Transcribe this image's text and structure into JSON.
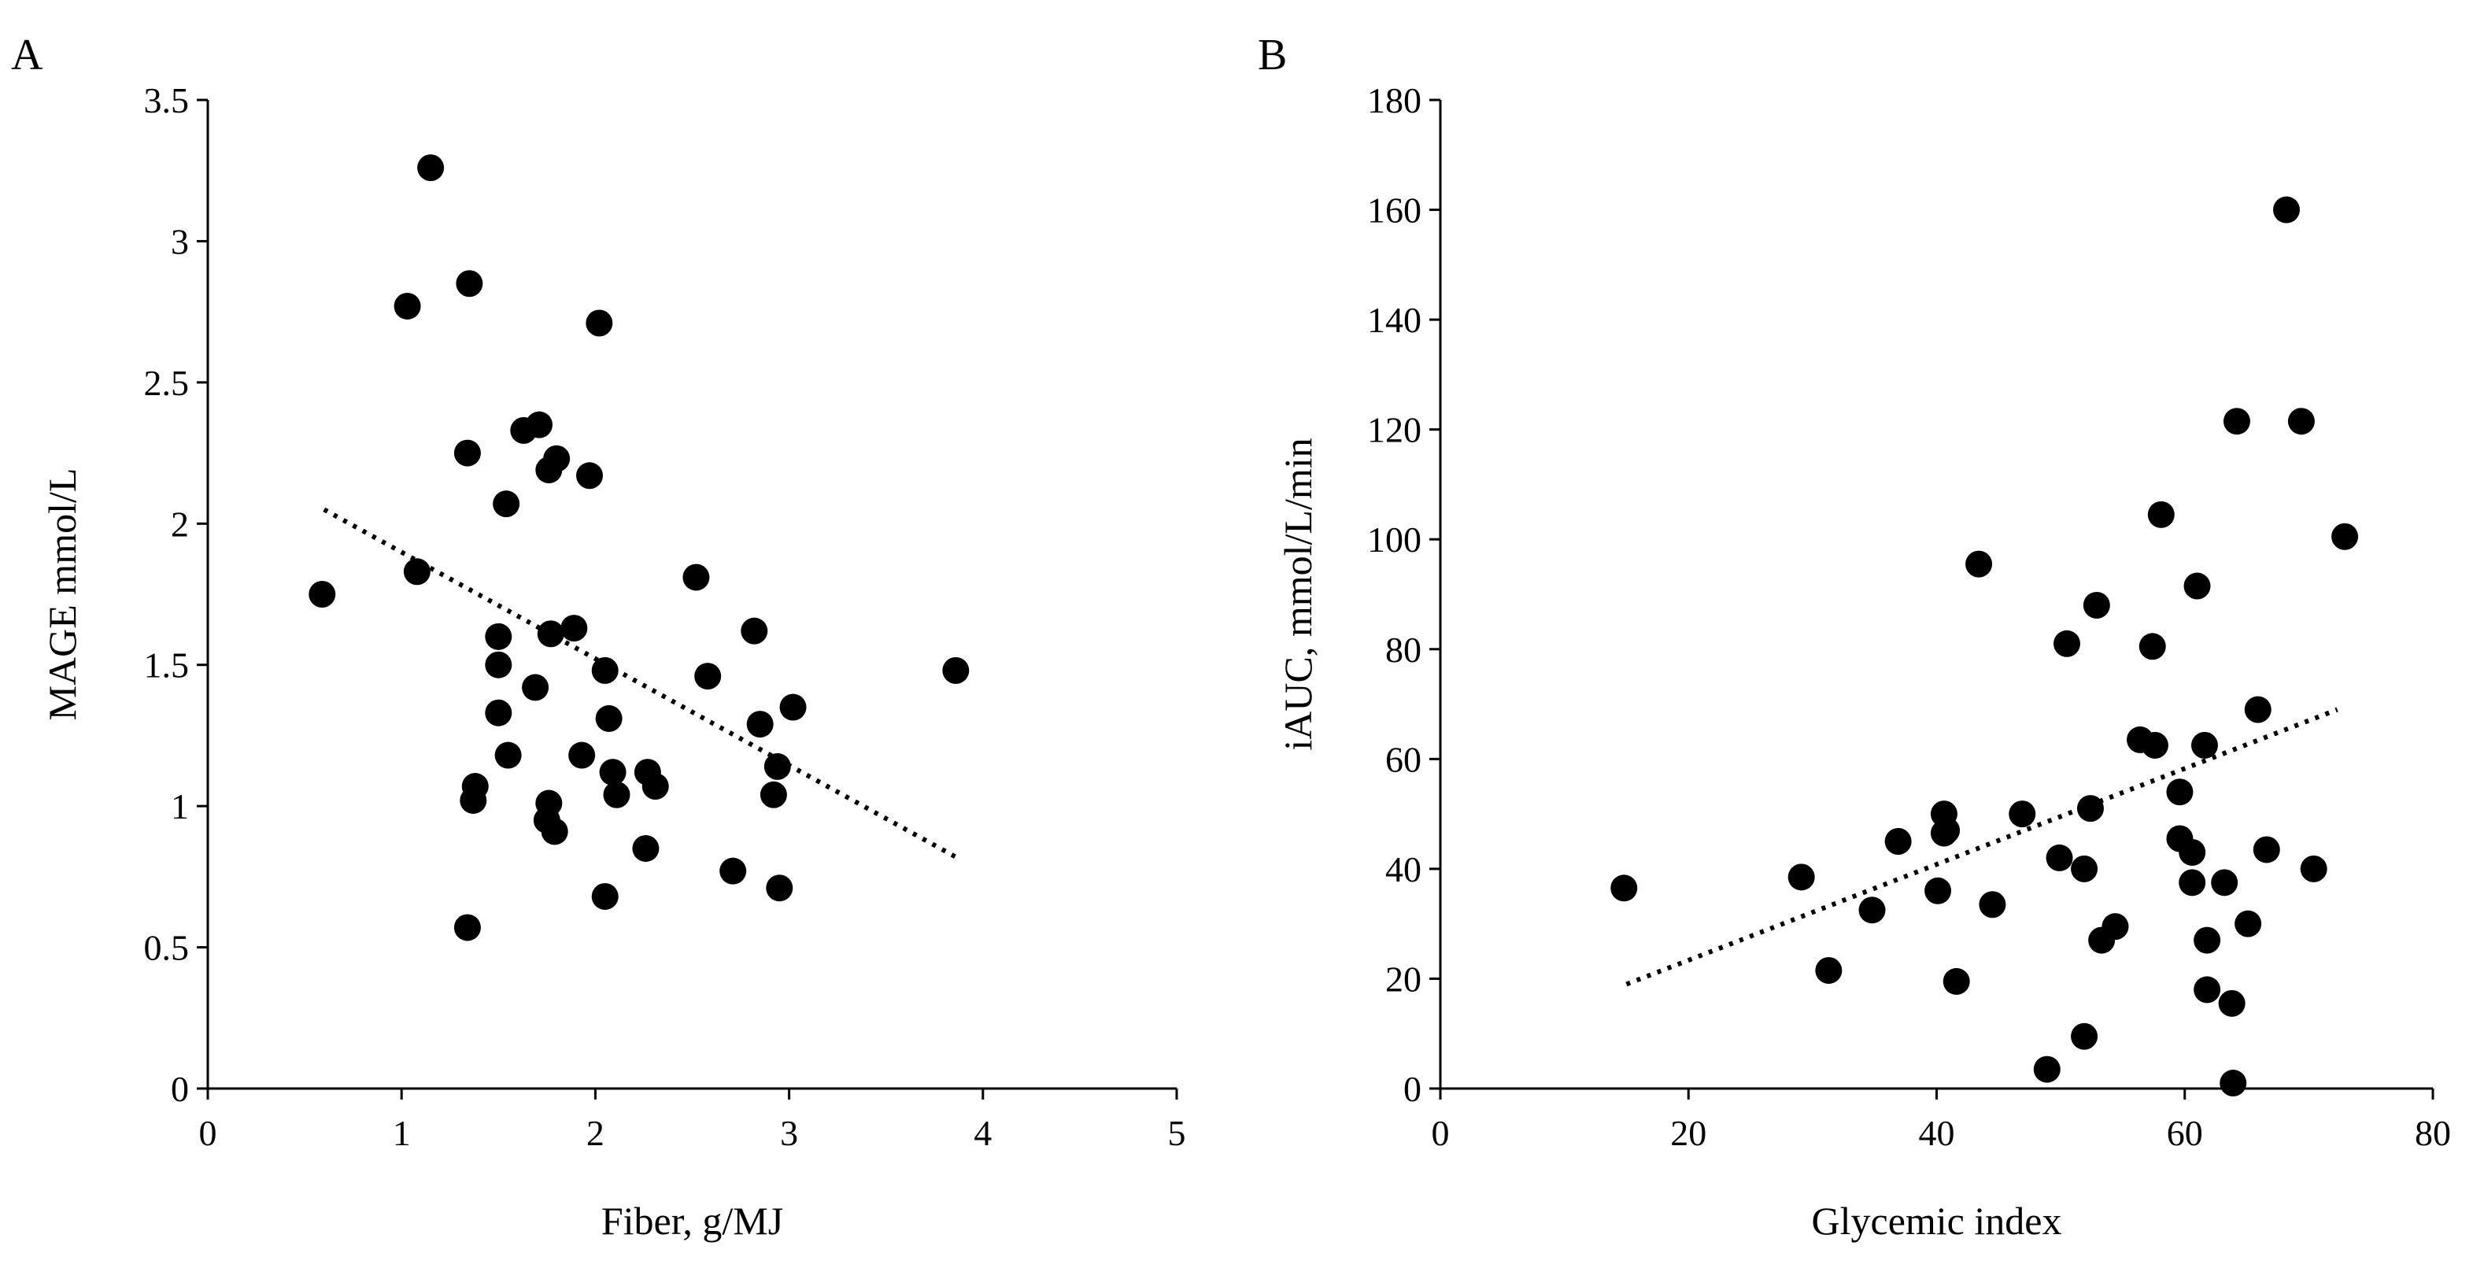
{
  "chart_data": [
    {
      "type": "scatter",
      "panel_label": "A",
      "title": "",
      "xlabel": "Fiber, g/MJ",
      "ylabel": "MAGE mmol/L",
      "xlim": [
        0,
        5
      ],
      "ylim": [
        0,
        3.5
      ],
      "x_ticks": [
        0,
        1,
        2,
        3,
        4,
        5
      ],
      "y_ticks": [
        0,
        0.5,
        1,
        1.5,
        2,
        2.5,
        3,
        3.5
      ],
      "x_tick_labels": [
        "0",
        "1",
        "2",
        "3",
        "4",
        "5"
      ],
      "y_tick_labels": [
        "0",
        "0.5",
        "1",
        "1.5",
        "2",
        "2.5",
        "3",
        "3.5"
      ],
      "grid": false,
      "marker_color": "#000000",
      "points": [
        [
          1.15,
          3.26
        ],
        [
          1.03,
          2.77
        ],
        [
          1.35,
          2.85
        ],
        [
          2.02,
          2.71
        ],
        [
          1.63,
          2.33
        ],
        [
          1.71,
          2.35
        ],
        [
          1.34,
          2.25
        ],
        [
          1.8,
          2.23
        ],
        [
          1.76,
          2.19
        ],
        [
          1.97,
          2.17
        ],
        [
          1.54,
          2.07
        ],
        [
          0.59,
          1.75
        ],
        [
          1.08,
          1.83
        ],
        [
          2.52,
          1.81
        ],
        [
          1.89,
          1.63
        ],
        [
          1.77,
          1.61
        ],
        [
          2.82,
          1.62
        ],
        [
          1.5,
          1.6
        ],
        [
          1.5,
          1.5
        ],
        [
          2.05,
          1.48
        ],
        [
          2.58,
          1.46
        ],
        [
          3.86,
          1.48
        ],
        [
          1.69,
          1.42
        ],
        [
          3.02,
          1.35
        ],
        [
          1.5,
          1.33
        ],
        [
          2.07,
          1.31
        ],
        [
          2.85,
          1.29
        ],
        [
          1.55,
          1.18
        ],
        [
          1.93,
          1.18
        ],
        [
          2.94,
          1.14
        ],
        [
          2.27,
          1.12
        ],
        [
          2.09,
          1.12
        ],
        [
          2.31,
          1.07
        ],
        [
          1.38,
          1.07
        ],
        [
          2.11,
          1.04
        ],
        [
          2.92,
          1.04
        ],
        [
          1.37,
          1.02
        ],
        [
          1.76,
          1.01
        ],
        [
          1.75,
          0.95
        ],
        [
          1.79,
          0.91
        ],
        [
          2.26,
          0.85
        ],
        [
          2.71,
          0.77
        ],
        [
          2.95,
          0.71
        ],
        [
          2.05,
          0.68
        ],
        [
          1.34,
          0.57
        ]
      ],
      "trendline": {
        "style": "dotted",
        "x": [
          0.6,
          3.86
        ],
        "y": [
          2.05,
          0.82
        ]
      }
    },
    {
      "type": "scatter",
      "panel_label": "B",
      "title": "",
      "xlabel": "Glycemic index",
      "ylabel": "iAUC, mmol/L/min",
      "xlim": [
        0,
        80
      ],
      "ylim": [
        0,
        180
      ],
      "x_ticks": [
        0,
        20,
        40,
        60,
        80
      ],
      "y_ticks": [
        0,
        20,
        40,
        60,
        80,
        100,
        120,
        140,
        160,
        180
      ],
      "x_tick_labels": [
        "0",
        "20",
        "40",
        "60",
        "80"
      ],
      "y_tick_labels": [
        "0",
        "20",
        "40",
        "60",
        "80",
        "100",
        "120",
        "140",
        "160",
        "180"
      ],
      "grid": false,
      "marker_color": "#000000",
      "points": [
        [
          68.2,
          160.0
        ],
        [
          64.2,
          121.5
        ],
        [
          69.4,
          121.5
        ],
        [
          72.9,
          100.5
        ],
        [
          58.1,
          104.5
        ],
        [
          43.4,
          95.5
        ],
        [
          52.9,
          88.0
        ],
        [
          61.0,
          91.5
        ],
        [
          50.5,
          81.0
        ],
        [
          57.4,
          80.5
        ],
        [
          65.9,
          69.0
        ],
        [
          56.4,
          63.5
        ],
        [
          57.6,
          62.5
        ],
        [
          61.6,
          62.5
        ],
        [
          59.6,
          54.0
        ],
        [
          40.6,
          50.0
        ],
        [
          46.9,
          50.0
        ],
        [
          52.4,
          51.0
        ],
        [
          40.8,
          47.0
        ],
        [
          40.6,
          46.5
        ],
        [
          36.9,
          45.0
        ],
        [
          59.6,
          45.5
        ],
        [
          60.6,
          43.0
        ],
        [
          66.6,
          43.5
        ],
        [
          49.9,
          42.0
        ],
        [
          51.9,
          40.0
        ],
        [
          70.4,
          40.0
        ],
        [
          29.1,
          38.5
        ],
        [
          60.6,
          37.5
        ],
        [
          63.2,
          37.5
        ],
        [
          14.8,
          36.5
        ],
        [
          40.1,
          36.0
        ],
        [
          44.5,
          33.5
        ],
        [
          34.8,
          32.5
        ],
        [
          54.4,
          29.5
        ],
        [
          65.1,
          30.0
        ],
        [
          53.3,
          27.0
        ],
        [
          61.8,
          27.0
        ],
        [
          31.3,
          21.5
        ],
        [
          41.6,
          19.5
        ],
        [
          61.8,
          18.0
        ],
        [
          63.8,
          15.5
        ],
        [
          51.9,
          9.5
        ],
        [
          48.9,
          3.5
        ],
        [
          63.9,
          1.0
        ]
      ],
      "trendline": {
        "style": "dotted",
        "x": [
          15.0,
          72.3
        ],
        "y": [
          19.0,
          69.0
        ]
      }
    }
  ]
}
